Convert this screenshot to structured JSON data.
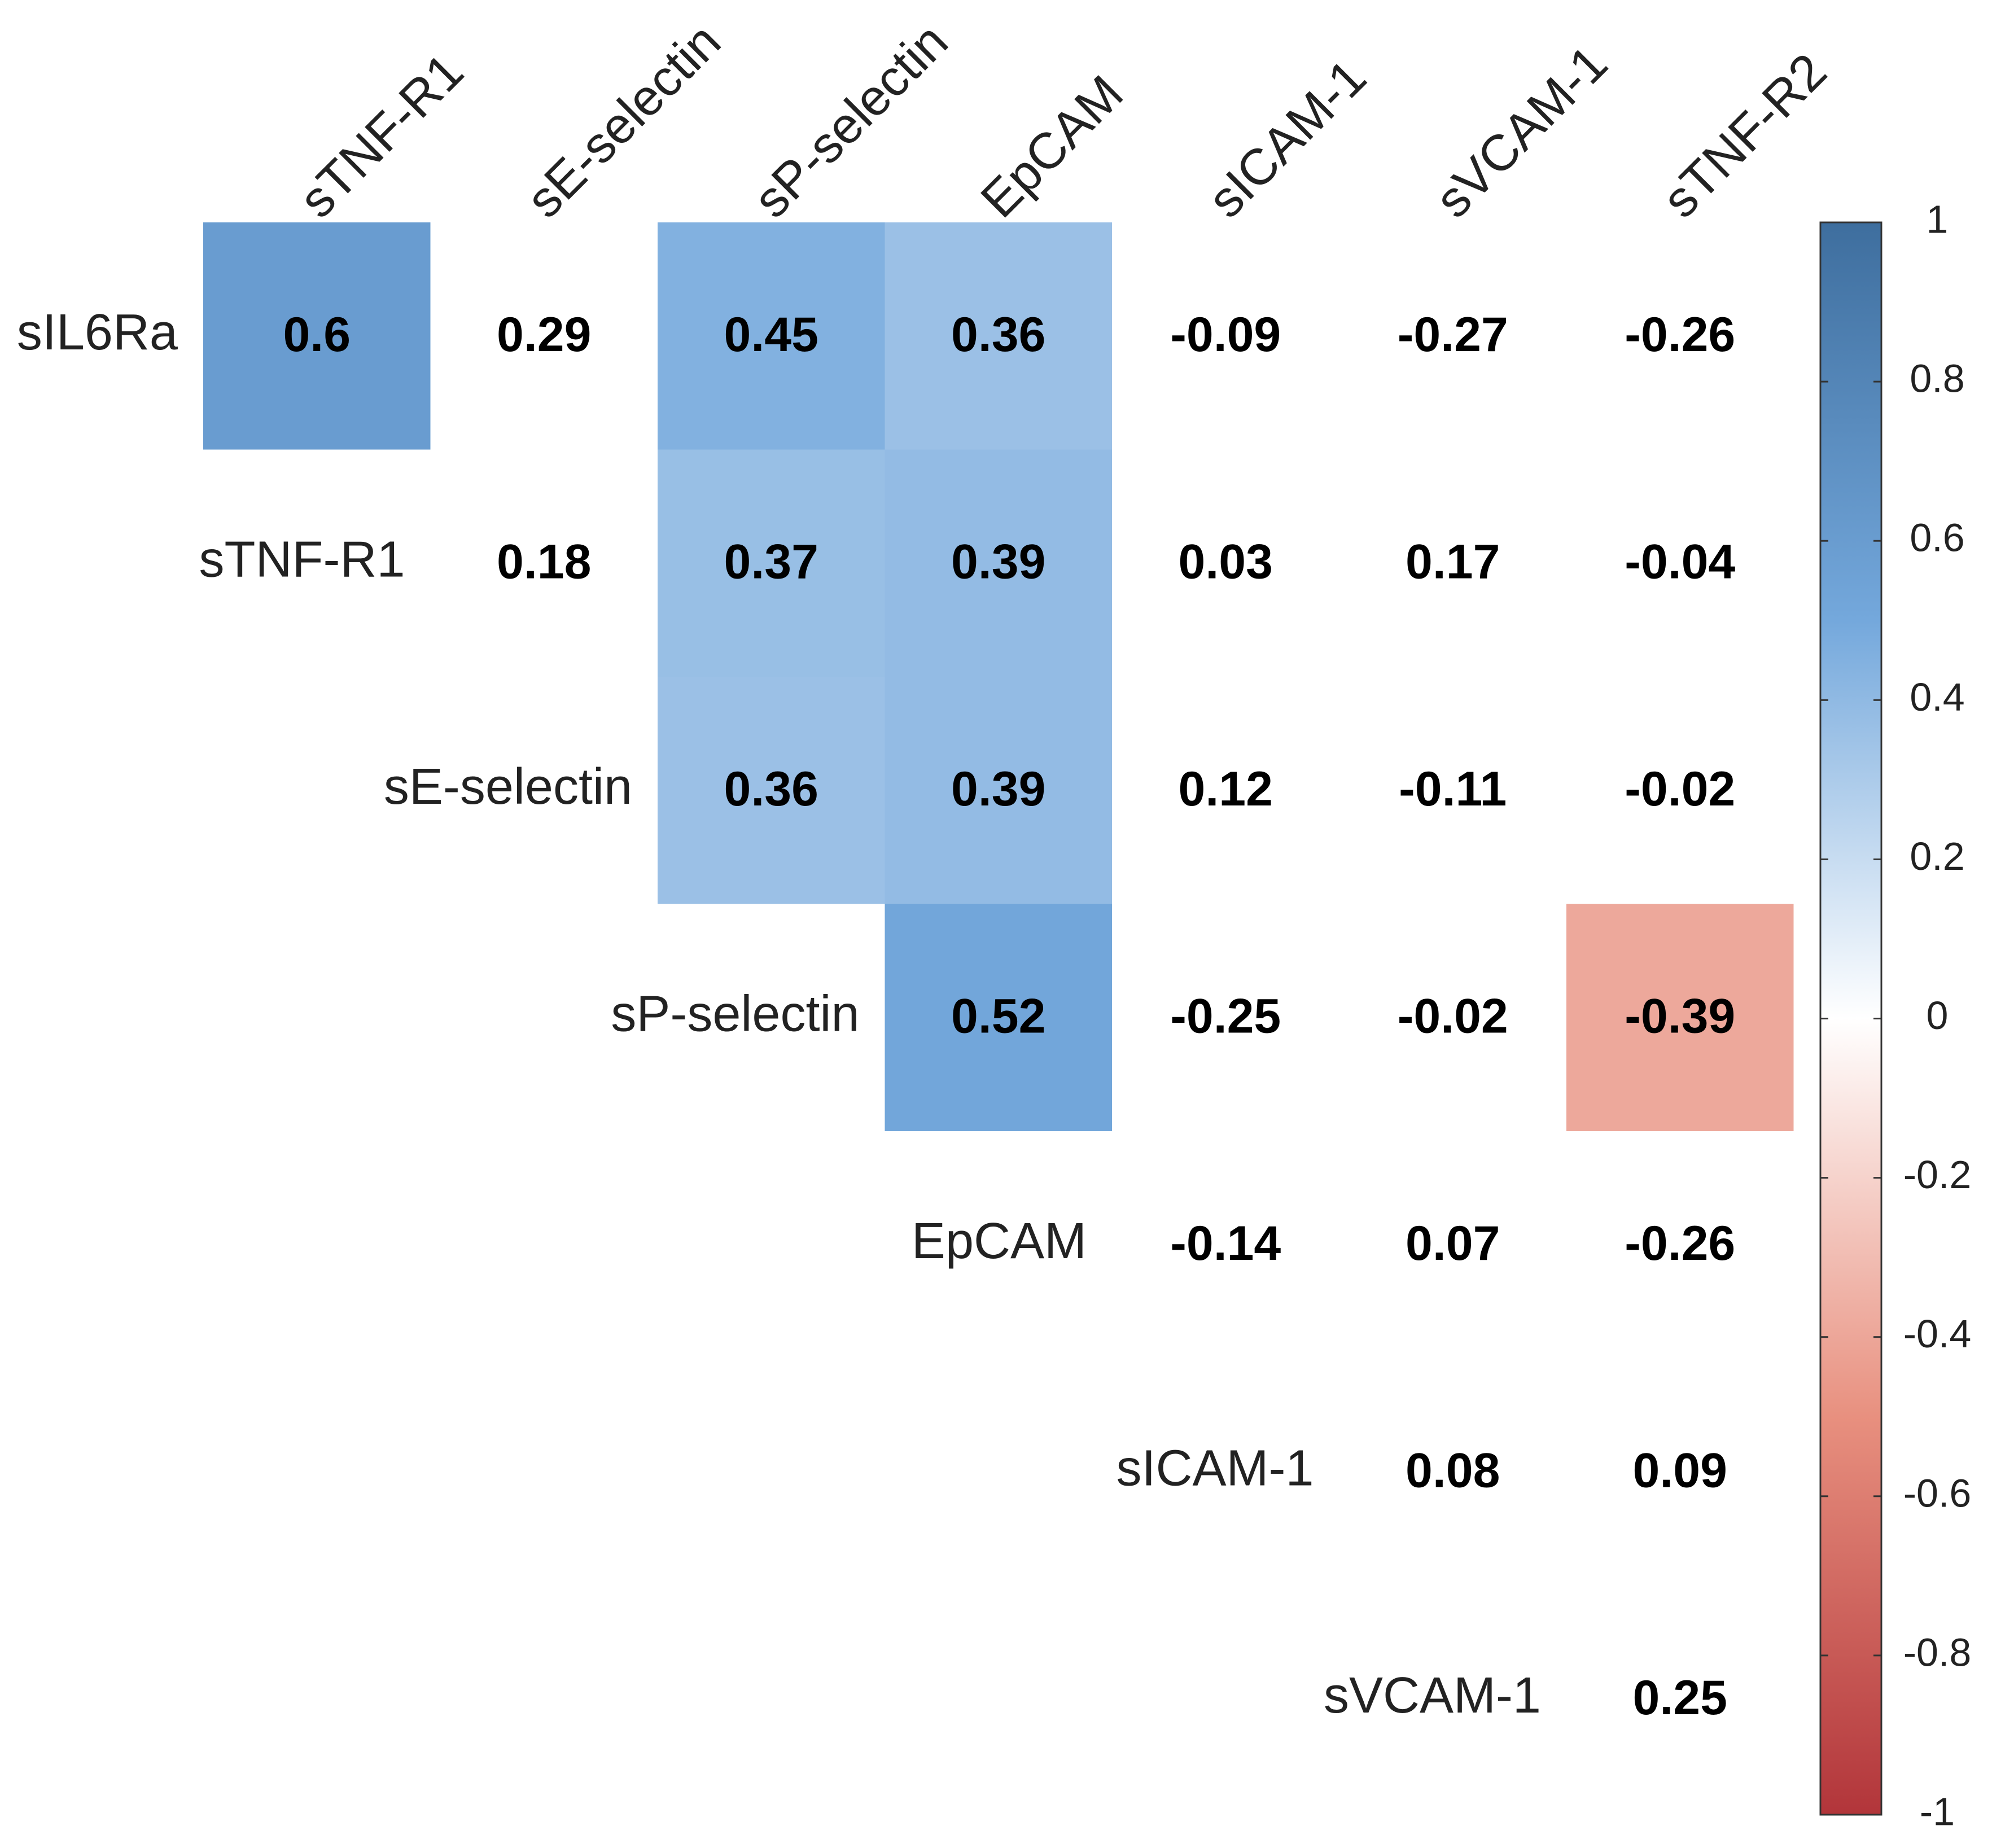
{
  "chart_data": {
    "type": "heatmap",
    "columns": [
      "sTNF-R1",
      "sE-selectin",
      "sP-selectin",
      "EpCAM",
      "sICAM-1",
      "sVCAM-1",
      "sTNF-R2"
    ],
    "rows": [
      "sIL6Ra",
      "sTNF-R1",
      "sE-selectin",
      "sP-selectin",
      "EpCAM",
      "sICAM-1",
      "sVCAM-1"
    ],
    "values": [
      [
        0.6,
        0.29,
        0.45,
        0.36,
        -0.09,
        -0.27,
        -0.26
      ],
      [
        null,
        0.18,
        0.37,
        0.39,
        0.03,
        0.17,
        -0.04
      ],
      [
        null,
        null,
        0.36,
        0.39,
        0.12,
        -0.11,
        -0.02
      ],
      [
        null,
        null,
        null,
        0.52,
        -0.25,
        -0.02,
        -0.39
      ],
      [
        null,
        null,
        null,
        null,
        -0.14,
        0.07,
        -0.26
      ],
      [
        null,
        null,
        null,
        null,
        null,
        0.08,
        0.09
      ],
      [
        null,
        null,
        null,
        null,
        null,
        null,
        0.25
      ]
    ],
    "significant": [
      [
        true,
        false,
        true,
        true,
        false,
        false,
        false
      ],
      [
        null,
        false,
        true,
        true,
        false,
        false,
        false
      ],
      [
        null,
        null,
        true,
        true,
        false,
        false,
        false
      ],
      [
        null,
        null,
        null,
        true,
        false,
        false,
        true
      ],
      [
        null,
        null,
        null,
        null,
        false,
        false,
        false
      ],
      [
        null,
        null,
        null,
        null,
        null,
        false,
        false
      ],
      [
        null,
        null,
        null,
        null,
        null,
        null,
        false
      ]
    ],
    "colormap": [
      "#b2353a",
      "#e8907f",
      "#ffffff",
      "#74a8dc",
      "#3e6e9e"
    ],
    "clim": [
      -1,
      1
    ],
    "cticks": [
      -1,
      -0.8,
      -0.6,
      -0.4,
      -0.2,
      0,
      0.2,
      0.4,
      0.6,
      0.8,
      1
    ]
  }
}
